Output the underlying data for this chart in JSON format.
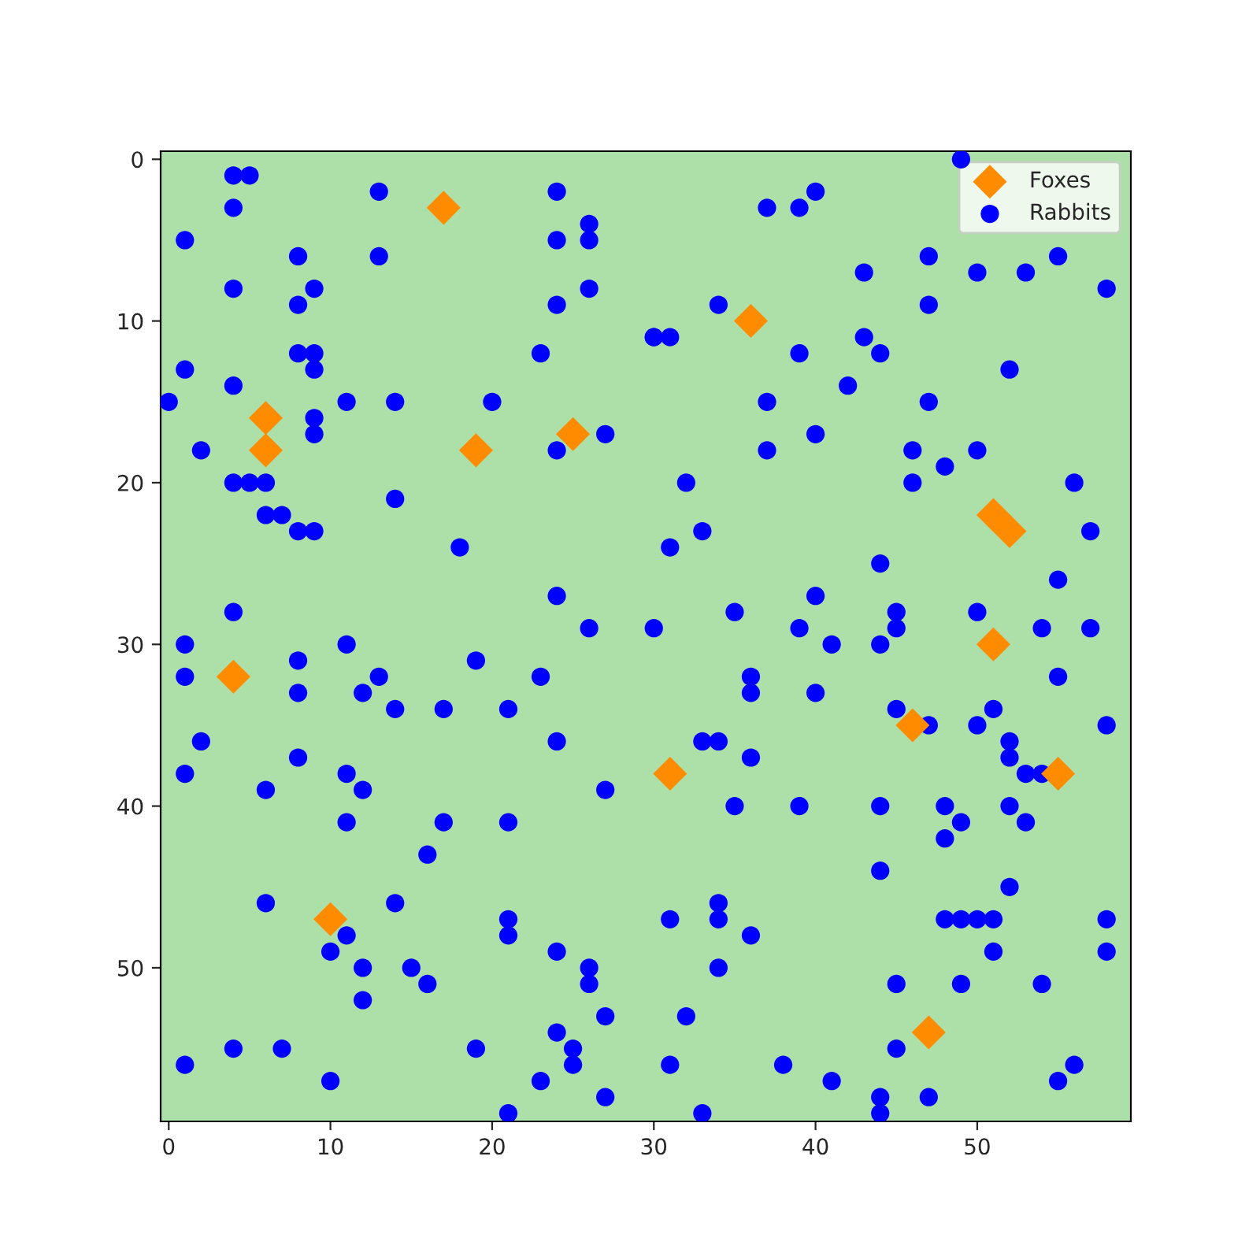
{
  "chart_data": {
    "type": "scatter",
    "xlim": [
      -0.5,
      59.5
    ],
    "ylim": [
      59.5,
      -0.5
    ],
    "xticks": [
      0,
      10,
      20,
      30,
      40,
      50
    ],
    "yticks": [
      0,
      10,
      20,
      30,
      40,
      50
    ],
    "grid": false,
    "legend": "top right",
    "series": [
      {
        "name": "Foxes",
        "color": "#ff8c00",
        "marker": "diamond",
        "x": [
          17,
          36,
          6,
          25,
          6,
          19,
          51,
          52,
          51,
          4,
          46,
          31,
          55,
          10,
          47
        ],
        "values": [
          3,
          10,
          16,
          17,
          18,
          18,
          22,
          23,
          30,
          32,
          35,
          38,
          38,
          47,
          54
        ]
      },
      {
        "name": "Rabbits",
        "color": "#0000ff",
        "marker": "circle",
        "x": [
          49,
          4,
          5,
          13,
          24,
          40,
          4,
          37,
          39,
          26,
          1,
          24,
          26,
          47,
          8,
          13,
          55,
          43,
          50,
          53,
          4,
          9,
          26,
          58,
          8,
          24,
          47,
          34,
          30,
          31,
          30,
          43,
          8,
          9,
          23,
          39,
          44,
          9,
          1,
          52,
          4,
          42,
          0,
          11,
          14,
          20,
          37,
          47,
          9,
          9,
          27,
          40,
          2,
          24,
          37,
          46,
          50,
          48,
          4,
          5,
          6,
          32,
          46,
          56,
          14,
          6,
          7,
          8,
          9,
          33,
          57,
          18,
          31,
          44,
          55,
          24,
          40,
          4,
          35,
          45,
          50,
          26,
          30,
          39,
          45,
          54,
          57,
          1,
          11,
          41,
          44,
          8,
          19,
          1,
          13,
          23,
          36,
          55,
          8,
          12,
          36,
          40,
          14,
          17,
          21,
          45,
          51,
          47,
          50,
          58,
          2,
          24,
          33,
          34,
          52,
          8,
          36,
          52,
          1,
          11,
          53,
          54,
          6,
          12,
          27,
          35,
          39,
          44,
          48,
          52,
          11,
          17,
          21,
          49,
          53,
          48,
          16,
          44,
          52,
          6,
          14,
          34,
          21,
          31,
          34,
          48,
          49,
          50,
          51,
          58,
          11,
          21,
          36,
          10,
          24,
          51,
          58,
          12,
          15,
          26,
          34,
          16,
          26,
          45,
          49,
          54,
          12,
          27,
          32,
          24,
          4,
          7,
          19,
          25,
          45,
          1,
          25,
          31,
          38,
          56,
          10,
          23,
          41,
          55,
          27,
          44,
          47,
          21,
          33,
          44
        ],
        "values": [
          0,
          1,
          1,
          2,
          2,
          2,
          3,
          3,
          3,
          4,
          5,
          5,
          5,
          6,
          6,
          6,
          6,
          7,
          7,
          7,
          8,
          8,
          8,
          8,
          9,
          9,
          9,
          9,
          11,
          11,
          11,
          11,
          12,
          12,
          12,
          12,
          12,
          13,
          13,
          13,
          14,
          14,
          15,
          15,
          15,
          15,
          15,
          15,
          16,
          17,
          17,
          17,
          18,
          18,
          18,
          18,
          18,
          19,
          20,
          20,
          20,
          20,
          20,
          20,
          21,
          22,
          22,
          23,
          23,
          23,
          23,
          24,
          24,
          25,
          26,
          27,
          27,
          28,
          28,
          28,
          28,
          29,
          29,
          29,
          29,
          29,
          29,
          30,
          30,
          30,
          30,
          31,
          31,
          32,
          32,
          32,
          32,
          32,
          33,
          33,
          33,
          33,
          34,
          34,
          34,
          34,
          34,
          35,
          35,
          35,
          36,
          36,
          36,
          36,
          36,
          37,
          37,
          37,
          38,
          38,
          38,
          38,
          39,
          39,
          39,
          40,
          40,
          40,
          40,
          40,
          41,
          41,
          41,
          41,
          41,
          42,
          43,
          44,
          45,
          46,
          46,
          46,
          47,
          47,
          47,
          47,
          47,
          47,
          47,
          47,
          48,
          48,
          48,
          49,
          49,
          49,
          49,
          50,
          50,
          50,
          50,
          51,
          51,
          51,
          51,
          51,
          52,
          53,
          53,
          54,
          55,
          55,
          55,
          55,
          55,
          56,
          56,
          56,
          56,
          56,
          57,
          57,
          57,
          57,
          58,
          58,
          58,
          59,
          59,
          59
        ]
      }
    ]
  }
}
